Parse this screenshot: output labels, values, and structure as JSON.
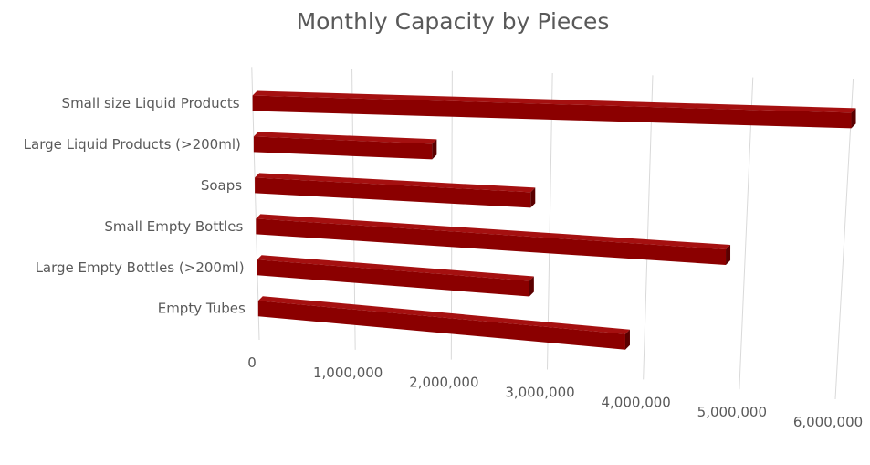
{
  "chart_data": {
    "type": "bar",
    "orientation": "horizontal",
    "style": "3d",
    "title": "Monthly Capacity by Pieces",
    "categories": [
      "Small size Liquid Products",
      "Large Liquid Products (>200ml)",
      "Soaps",
      "Small Empty Bottles",
      "Large Empty Bottles (>200ml)",
      "Empty Tubes"
    ],
    "values": [
      6000000,
      1800000,
      2800000,
      4800000,
      2800000,
      3800000
    ],
    "xlabel": "",
    "ylabel": "",
    "xlim": [
      0,
      6000000
    ],
    "x_ticks": [
      "0",
      "1,000,000",
      "2,000,000",
      "3,000,000",
      "4,000,000",
      "5,000,000",
      "6,000,000"
    ],
    "grid": true,
    "legend": "none",
    "colors": {
      "bar_front": "#8b0000",
      "bar_top": "#a51010",
      "bar_side": "#5a0000",
      "grid": "#d9d9d9",
      "text": "#595959"
    }
  }
}
